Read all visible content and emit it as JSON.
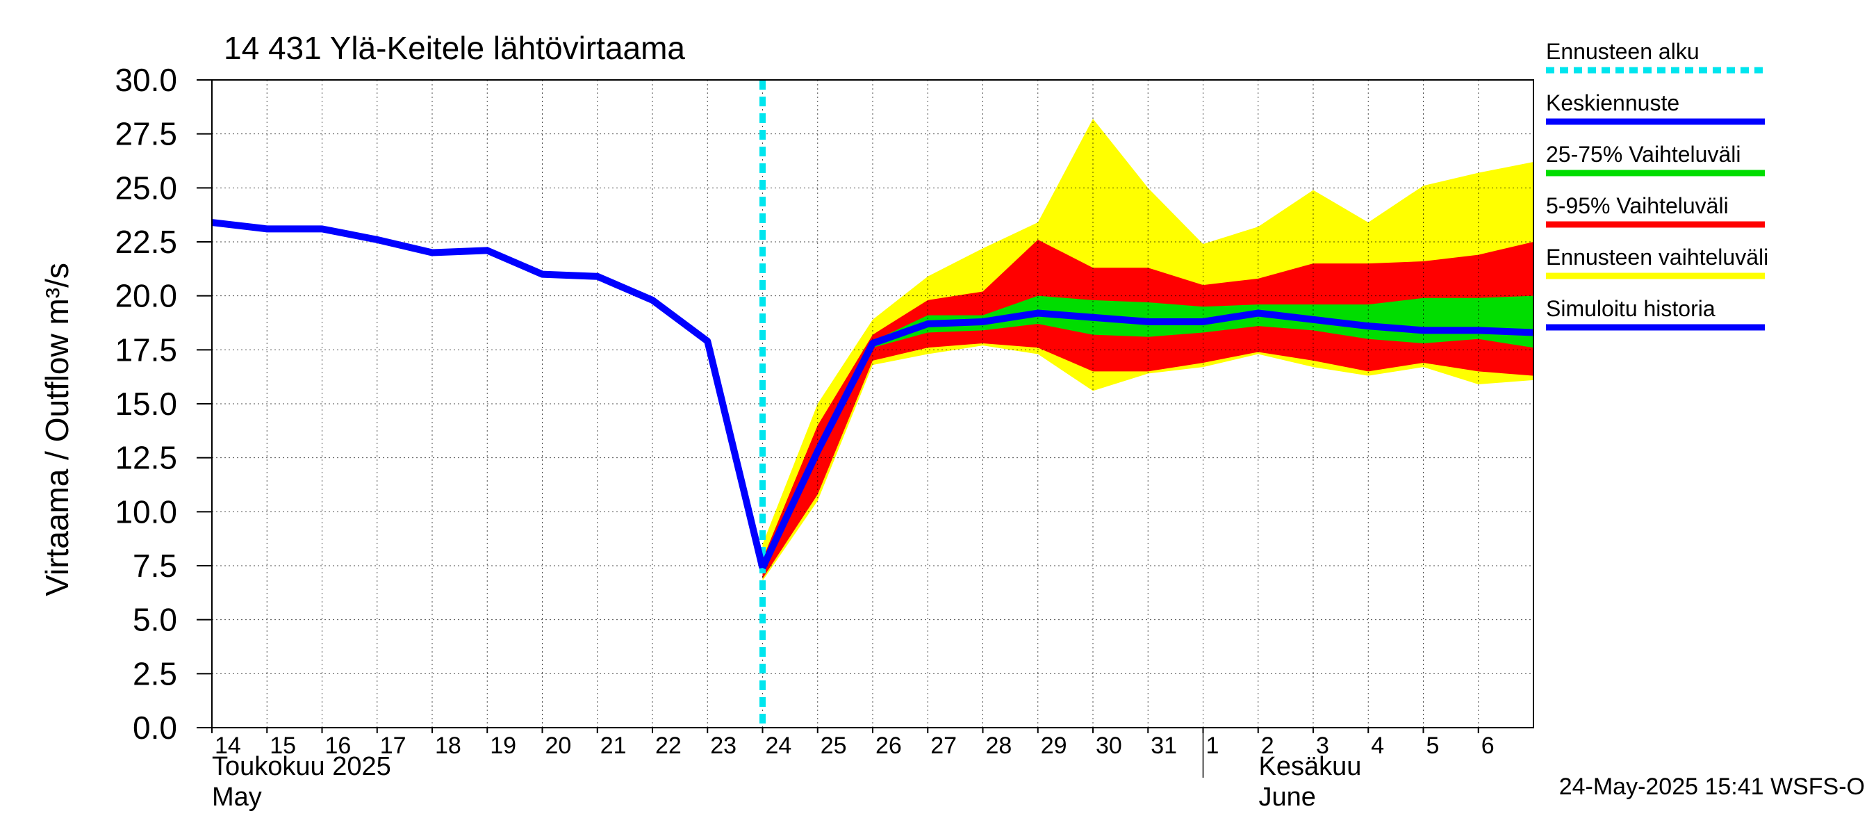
{
  "chart_data": {
    "type": "area",
    "title": "14 431 Ylä-Keitele lähtövirtaama",
    "ylabel": "Virtaama / Outflow    m³/s",
    "ylim": [
      0,
      30
    ],
    "y_ticks": [
      "0.0",
      "2.5",
      "5.0",
      "7.5",
      "10.0",
      "12.5",
      "15.0",
      "17.5",
      "20.0",
      "22.5",
      "25.0",
      "27.5",
      "30.0"
    ],
    "x_days": [
      "2025-05-14",
      "2025-05-15",
      "2025-05-16",
      "2025-05-17",
      "2025-05-18",
      "2025-05-19",
      "2025-05-20",
      "2025-05-21",
      "2025-05-22",
      "2025-05-23",
      "2025-05-24",
      "2025-05-25",
      "2025-05-26",
      "2025-05-27",
      "2025-05-28",
      "2025-05-29",
      "2025-05-30",
      "2025-05-31",
      "2025-06-01",
      "2025-06-02",
      "2025-06-03",
      "2025-06-04",
      "2025-06-05",
      "2025-06-06"
    ],
    "x_tick_labels": [
      "14",
      "15",
      "16",
      "17",
      "18",
      "19",
      "20",
      "21",
      "22",
      "23",
      "24",
      "25",
      "26",
      "27",
      "28",
      "29",
      "30",
      "31",
      "1",
      "2",
      "3",
      "4",
      "5",
      "6"
    ],
    "x_end": "2025-06-07",
    "month_labels": [
      {
        "fi": "Toukokuu  2025",
        "en": "May",
        "start": "2025-05-14"
      },
      {
        "fi": "Kesäkuu",
        "en": "June",
        "start": "2025-06-01"
      }
    ],
    "forecast_start": "2025-05-24",
    "grid": true,
    "legend_position": "right",
    "history": {
      "name": "Simuloitu historia",
      "color": "#0000ff",
      "x": [
        "2025-05-14",
        "2025-05-15",
        "2025-05-16",
        "2025-05-17",
        "2025-05-18",
        "2025-05-19",
        "2025-05-20",
        "2025-05-21",
        "2025-05-22",
        "2025-05-23",
        "2025-05-24"
      ],
      "y": [
        23.4,
        23.1,
        23.1,
        22.6,
        22.0,
        22.1,
        21.0,
        20.9,
        19.8,
        17.9,
        7.4
      ]
    },
    "forecast_x": [
      "2025-05-24",
      "2025-05-25",
      "2025-05-26",
      "2025-05-27",
      "2025-05-28",
      "2025-05-29",
      "2025-05-30",
      "2025-05-31",
      "2025-06-01",
      "2025-06-02",
      "2025-06-03",
      "2025-06-04",
      "2025-06-05",
      "2025-06-06",
      "2025-06-07"
    ],
    "bands": [
      {
        "name": "Ennusteen vaihteluväli",
        "color": "#ffff00",
        "upper": [
          8.5,
          15.0,
          18.9,
          20.9,
          22.2,
          23.4,
          28.2,
          25.0,
          22.4,
          23.2,
          24.9,
          23.4,
          25.1,
          25.7,
          26.2
        ],
        "lower": [
          6.8,
          10.5,
          16.8,
          17.3,
          17.7,
          17.3,
          15.6,
          16.4,
          16.7,
          17.3,
          16.7,
          16.3,
          16.7,
          15.9,
          16.1
        ]
      },
      {
        "name": "5-95% Vaihteluväli",
        "color": "#ff0000",
        "upper": [
          7.8,
          14.0,
          18.2,
          19.8,
          20.2,
          22.6,
          21.3,
          21.3,
          20.5,
          20.8,
          21.5,
          21.5,
          21.6,
          21.9,
          22.5
        ],
        "lower": [
          6.9,
          10.8,
          17.0,
          17.6,
          17.8,
          17.6,
          16.5,
          16.5,
          16.9,
          17.4,
          17.0,
          16.5,
          16.9,
          16.5,
          16.3
        ]
      },
      {
        "name": "25-75% Vaihteluväli",
        "color": "#00dd00",
        "upper": [
          7.5,
          13.0,
          17.9,
          19.1,
          19.1,
          20.0,
          19.8,
          19.7,
          19.5,
          19.6,
          19.6,
          19.6,
          19.9,
          19.9,
          20.0
        ],
        "lower": [
          7.3,
          12.5,
          17.6,
          18.3,
          18.4,
          18.7,
          18.2,
          18.1,
          18.3,
          18.6,
          18.4,
          18.0,
          17.8,
          18.0,
          17.6
        ]
      }
    ],
    "median": {
      "name": "Keskiennuste",
      "color": "#0000ff",
      "y": [
        7.4,
        12.8,
        17.8,
        18.7,
        18.8,
        19.2,
        19.0,
        18.8,
        18.8,
        19.2,
        18.9,
        18.6,
        18.4,
        18.4,
        18.3
      ]
    },
    "legend": [
      {
        "label": "Ennusteen alku",
        "color": "#00e5ee",
        "style": "dashed"
      },
      {
        "label": "Keskiennuste",
        "color": "#0000ff",
        "style": "line"
      },
      {
        "label": "25-75% Vaihteluväli",
        "color": "#00dd00",
        "style": "line"
      },
      {
        "label": "5-95% Vaihteluväli",
        "color": "#ff0000",
        "style": "line"
      },
      {
        "label": "Ennusteen vaihteluväli",
        "color": "#ffff00",
        "style": "line"
      },
      {
        "label": "Simuloitu historia",
        "color": "#0000ff",
        "style": "line"
      }
    ],
    "footer": "24-May-2025 15:41 WSFS-O"
  }
}
